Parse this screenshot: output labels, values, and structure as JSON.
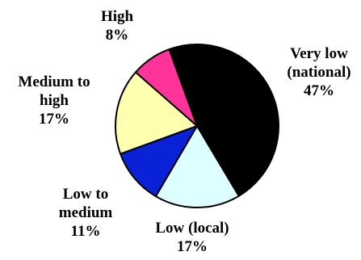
{
  "chart_data": {
    "type": "pie",
    "title": "",
    "start_angle_deg": -20,
    "direction": "clockwise",
    "slices": [
      {
        "label_lines": [
          "Very low",
          "(national)"
        ],
        "percent_text": "47%",
        "value": 47,
        "color": "#000000"
      },
      {
        "label_lines": [
          "Low (local)"
        ],
        "percent_text": "17%",
        "value": 17,
        "color": "#DDFFFF"
      },
      {
        "label_lines": [
          "Low to",
          "medium"
        ],
        "percent_text": "11%",
        "value": 11,
        "color": "#0A22D6"
      },
      {
        "label_lines": [
          "Medium to",
          "high"
        ],
        "percent_text": "17%",
        "value": 17,
        "color": "#FFFFB0"
      },
      {
        "label_lines": [
          "High"
        ],
        "percent_text": "8%",
        "value": 8,
        "color": "#FF3399"
      }
    ]
  }
}
